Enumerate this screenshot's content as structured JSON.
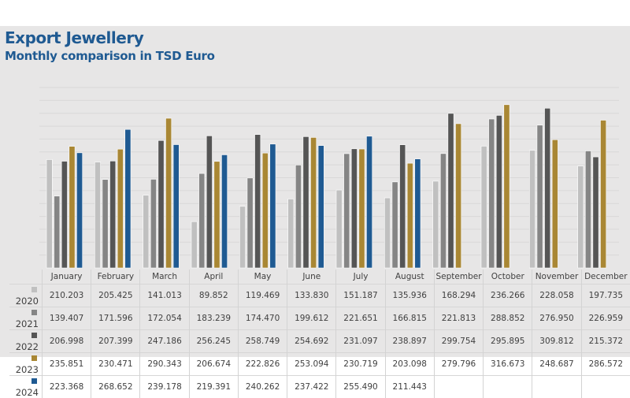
{
  "chart_data": {
    "type": "bar",
    "title": "Export Jewellery",
    "subtitle": "Monthly comparison in TSD Euro",
    "xlabel": "",
    "ylabel": "",
    "ylim": [
      0,
      350
    ],
    "grid": true,
    "gridStep": 25,
    "legend": "bottom-left (data table)",
    "categories": [
      "January",
      "February",
      "March",
      "April",
      "May",
      "June",
      "July",
      "August",
      "September",
      "October",
      "November",
      "December"
    ],
    "series": [
      {
        "name": "2020",
        "color": "#c0c0c0",
        "values": [
          210.203,
          205.425,
          141.013,
          89.852,
          119.469,
          133.83,
          151.187,
          135.936,
          168.294,
          236.266,
          228.058,
          197.735
        ]
      },
      {
        "name": "2021",
        "color": "#858585",
        "values": [
          139.407,
          171.596,
          172.054,
          183.239,
          174.47,
          199.612,
          221.651,
          166.815,
          221.813,
          288.852,
          276.95,
          226.959
        ]
      },
      {
        "name": "2022",
        "color": "#555555",
        "values": [
          206.998,
          207.399,
          247.186,
          256.245,
          258.749,
          254.692,
          231.097,
          238.897,
          299.754,
          295.895,
          309.812,
          215.372
        ]
      },
      {
        "name": "2023",
        "color": "#a98734",
        "values": [
          235.851,
          230.471,
          290.343,
          206.674,
          222.826,
          253.094,
          230.719,
          203.098,
          279.796,
          316.673,
          248.687,
          286.572
        ]
      },
      {
        "name": "2024",
        "color": "#1f5a92",
        "values": [
          223.368,
          268.652,
          239.178,
          219.391,
          240.262,
          237.422,
          255.49,
          211.443,
          null,
          null,
          null,
          null
        ]
      }
    ],
    "table_text": [
      [
        "210.203",
        "205.425",
        "141.013",
        "89.852",
        "119.469",
        "133.830",
        "151.187",
        "135.936",
        "168.294",
        "236.266",
        "228.058",
        "197.735"
      ],
      [
        "139.407",
        "171.596",
        "172.054",
        "183.239",
        "174.470",
        "199.612",
        "221.651",
        "166.815",
        "221.813",
        "288.852",
        "276.950",
        "226.959"
      ],
      [
        "206.998",
        "207.399",
        "247.186",
        "256.245",
        "258.749",
        "254.692",
        "231.097",
        "238.897",
        "299.754",
        "295.895",
        "309.812",
        "215.372"
      ],
      [
        "235.851",
        "230.471",
        "290.343",
        "206.674",
        "222.826",
        "253.094",
        "230.719",
        "203.098",
        "279.796",
        "316.673",
        "248.687",
        "286.572"
      ],
      [
        "223.368",
        "268.652",
        "239.178",
        "219.391",
        "240.262",
        "237.422",
        "255.490",
        "211.443",
        "",
        "",
        "",
        ""
      ]
    ]
  }
}
